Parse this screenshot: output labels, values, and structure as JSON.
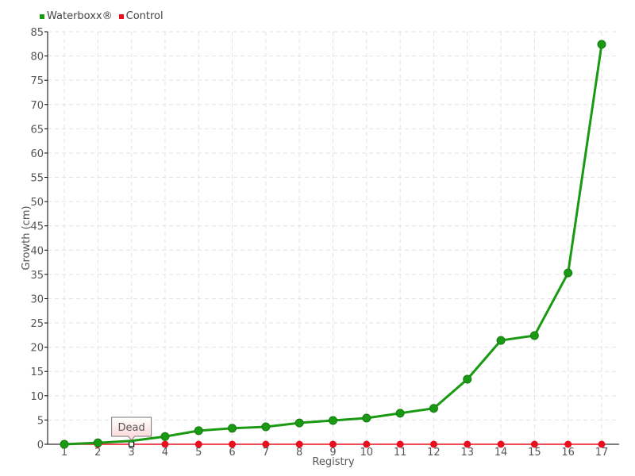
{
  "chart_data": {
    "type": "line",
    "title": "",
    "xlabel": "Registry",
    "ylabel": "Growth (cm)",
    "x": [
      1,
      2,
      3,
      4,
      5,
      6,
      7,
      8,
      9,
      10,
      11,
      12,
      13,
      14,
      15,
      16,
      17
    ],
    "xlim": [
      1,
      17
    ],
    "ylim": [
      0,
      85
    ],
    "yticks": [
      0,
      5,
      10,
      15,
      20,
      25,
      30,
      35,
      40,
      45,
      50,
      55,
      60,
      65,
      70,
      75,
      80,
      85
    ],
    "grid": true,
    "legend_position": "top-left",
    "series": [
      {
        "name": "Waterboxx®",
        "color": "#1a9a12",
        "values": [
          0,
          0.3,
          0.7,
          1.6,
          2.8,
          3.3,
          3.6,
          4.4,
          4.9,
          5.4,
          6.4,
          7.4,
          13.4,
          21.4,
          22.4,
          35.3,
          82.4
        ]
      },
      {
        "name": "Control",
        "color": "#e8101e",
        "values": [
          0,
          0,
          0,
          0,
          0,
          0,
          0,
          0,
          0,
          0,
          0,
          0,
          0,
          0,
          0,
          0,
          0
        ]
      }
    ],
    "annotations": [
      {
        "series": "Control",
        "x": 3,
        "text": "Dead"
      }
    ]
  }
}
